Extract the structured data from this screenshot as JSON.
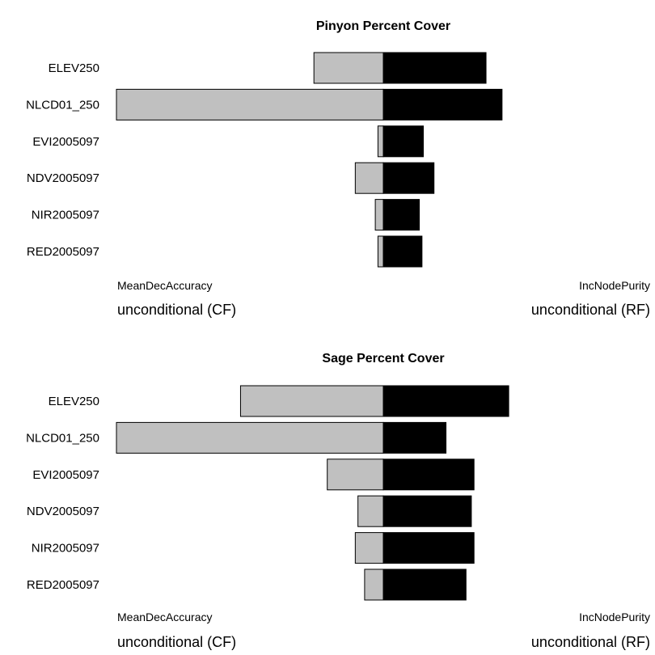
{
  "chart_data": [
    {
      "type": "bar",
      "title": "Pinyon Percent Cover",
      "categories": [
        "ELEV250",
        "NLCD01_250",
        "EVI2005097",
        "NDV2005097",
        "NIR2005097",
        "RED2005097"
      ],
      "series": [
        {
          "name": "MeanDecAccuracy unconditional (CF)",
          "color": "#c0c0c0",
          "values": [
            0.26,
            1.0,
            0.02,
            0.105,
            0.03,
            0.02
          ]
        },
        {
          "name": "IncNodePurity unconditional (RF)",
          "color": "#000000",
          "values": [
            0.385,
            0.445,
            0.15,
            0.19,
            0.135,
            0.145
          ]
        }
      ],
      "left_labels": [
        "MeanDecAccuracy",
        "unconditional (CF)"
      ],
      "right_labels": [
        "IncNodePurity",
        "unconditional (RF)"
      ]
    },
    {
      "type": "bar",
      "title": "Sage Percent Cover",
      "categories": [
        "ELEV250",
        "NLCD01_250",
        "EVI2005097",
        "NDV2005097",
        "NIR2005097",
        "RED2005097"
      ],
      "series": [
        {
          "name": "MeanDecAccuracy unconditional (CF)",
          "color": "#c0c0c0",
          "values": [
            0.535,
            1.0,
            0.21,
            0.095,
            0.105,
            0.07
          ]
        },
        {
          "name": "IncNodePurity unconditional (RF)",
          "color": "#000000",
          "values": [
            0.47,
            0.235,
            0.34,
            0.33,
            0.34,
            0.31
          ]
        }
      ],
      "left_labels": [
        "MeanDecAccuracy",
        "unconditional (CF)"
      ],
      "right_labels": [
        "IncNodePurity",
        "unconditional (RF)"
      ]
    }
  ]
}
